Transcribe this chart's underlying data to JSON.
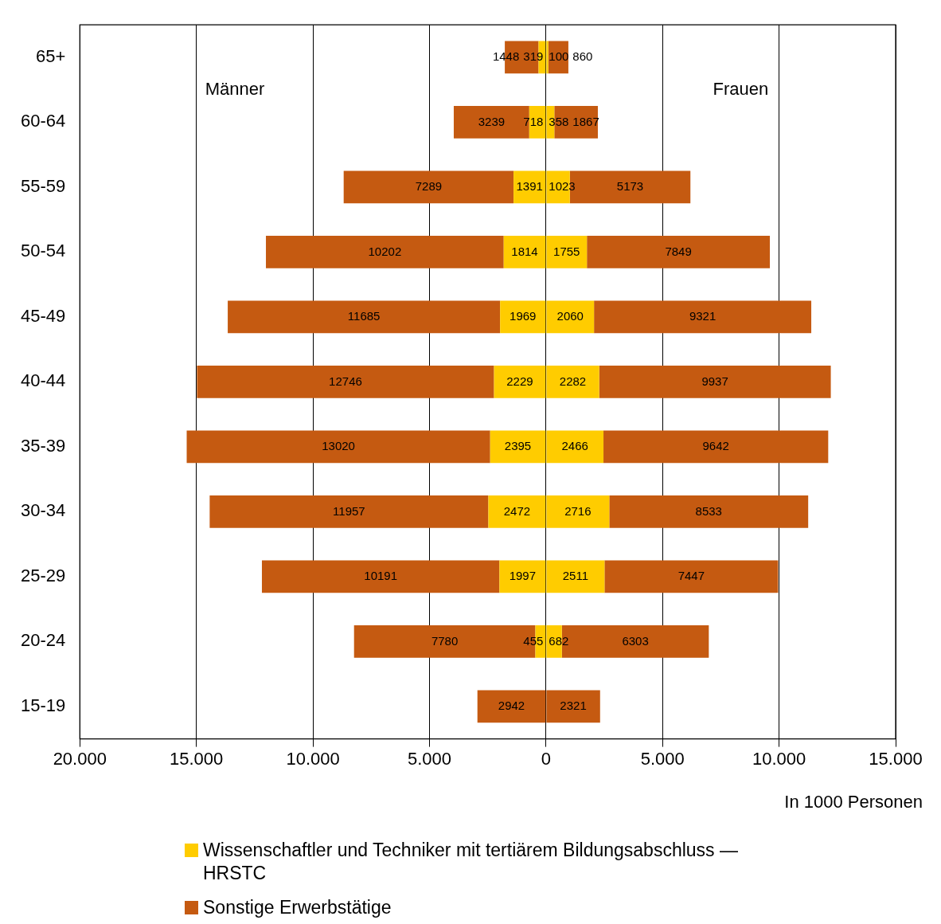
{
  "chart_data": {
    "type": "bar",
    "orientation": "horizontal",
    "categories": [
      "65+",
      "60-64",
      "55-59",
      "50-54",
      "45-49",
      "40-44",
      "35-39",
      "30-34",
      "25-29",
      "20-24",
      "15-19"
    ],
    "series": [
      {
        "name": "Wissenschaftler und Techniker mit tertiärem Bildungsabschluss — HRSTC",
        "color": "#ffcc00",
        "values": [
          319,
          718,
          1391,
          1814,
          1969,
          2229,
          2395,
          2472,
          1997,
          455,
          null
        ],
        "base": [
          -319,
          -718,
          -1391,
          -1814,
          -1969,
          -2229,
          -2395,
          -2472,
          -1997,
          -455,
          null
        ]
      },
      {
        "name": "Sonstige Erwerbstätige",
        "color": "#c55a11",
        "values": [
          1448,
          3239,
          7289,
          10202,
          11685,
          12746,
          13020,
          11957,
          10191,
          7780,
          2942
        ],
        "base": [
          -1767,
          -3957,
          -8680,
          -12016,
          -13654,
          -14975,
          -15415,
          -14429,
          -12188,
          -8235,
          -2942
        ]
      },
      {
        "color": "#ffcc00",
        "values": [
          100,
          358,
          1023,
          1755,
          2060,
          2282,
          2466,
          2716,
          2511,
          682,
          null
        ],
        "base": [
          0,
          0,
          0,
          0,
          0,
          0,
          0,
          0,
          0,
          0,
          null
        ]
      },
      {
        "color": "#c55a11",
        "values": [
          860,
          1867,
          5173,
          7849,
          9321,
          9937,
          9642,
          8533,
          7447,
          6303,
          2321
        ],
        "base": [
          100,
          358,
          1023,
          1755,
          2060,
          2282,
          2466,
          2716,
          2511,
          682,
          0
        ]
      }
    ],
    "xlim": [
      -20000,
      15000
    ],
    "xticks": [
      {
        "value": -20000,
        "label": "20.000"
      },
      {
        "value": -15000,
        "label": "15.000"
      },
      {
        "value": -10000,
        "label": "10.000"
      },
      {
        "value": -5000,
        "label": "5.000"
      },
      0,
      {
        "value": 5000,
        "label": "5.000"
      },
      {
        "value": 10000,
        "label": "10.000"
      },
      {
        "value": 15000,
        "label": "15.000"
      }
    ],
    "xlabel": "In 1000 Personen",
    "data_labels": true,
    "grid": "x",
    "legend": "bottom",
    "annotations": [
      "Männer",
      "Frauen"
    ]
  }
}
